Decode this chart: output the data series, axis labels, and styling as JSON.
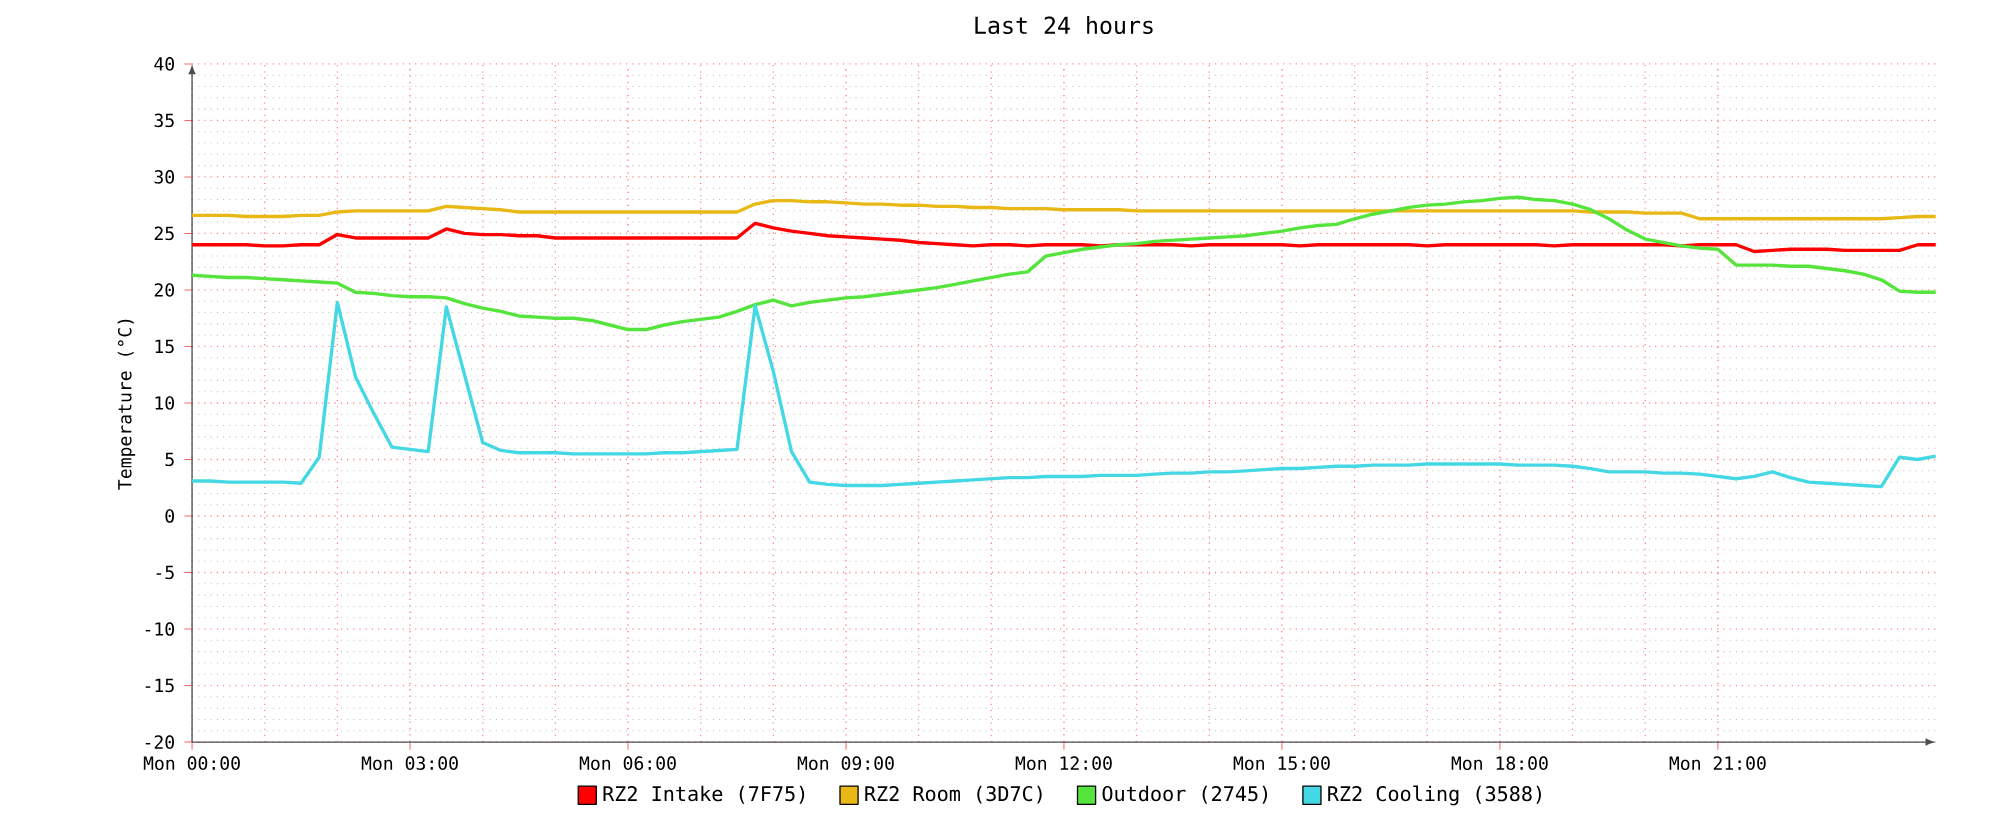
{
  "chart_data": {
    "type": "line",
    "title": "Last 24 hours",
    "ylabel": "Temperature (°C)",
    "categories": [
      "Mon 00:00",
      null,
      null,
      null,
      null,
      null,
      null,
      null,
      null,
      null,
      null,
      null,
      "Mon 03:00",
      null,
      null,
      null,
      null,
      null,
      null,
      null,
      null,
      null,
      null,
      null,
      "Mon 06:00",
      null,
      null,
      null,
      null,
      null,
      null,
      null,
      null,
      null,
      null,
      null,
      "Mon 09:00",
      null,
      null,
      null,
      null,
      null,
      null,
      null,
      null,
      null,
      null,
      null,
      "Mon 12:00",
      null,
      null,
      null,
      null,
      null,
      null,
      null,
      null,
      null,
      null,
      null,
      "Mon 15:00",
      null,
      null,
      null,
      null,
      null,
      null,
      null,
      null,
      null,
      null,
      null,
      "Mon 18:00",
      null,
      null,
      null,
      null,
      null,
      null,
      null,
      null,
      null,
      null,
      null,
      "Mon 21:00",
      null,
      null,
      null,
      null,
      null,
      null,
      null,
      null,
      null,
      null,
      null,
      null
    ],
    "ylim": [
      -20,
      40
    ],
    "yticks": [
      -20,
      -15,
      -10,
      -5,
      0,
      5,
      10,
      15,
      20,
      25,
      30,
      35,
      40
    ],
    "grid": true,
    "legend": "bottom",
    "marker": "none",
    "line_style": "solid",
    "series": [
      {
        "name": "RZ2 Intake (7F75)",
        "color": "#ff0000",
        "values": [
          24.0,
          24.0,
          24.0,
          24.0,
          23.9,
          23.9,
          24.0,
          24.0,
          24.9,
          24.6,
          24.6,
          24.6,
          24.6,
          24.6,
          25.4,
          25.0,
          24.9,
          24.9,
          24.8,
          24.8,
          24.6,
          24.6,
          24.6,
          24.6,
          24.6,
          24.6,
          24.6,
          24.6,
          24.6,
          24.6,
          24.6,
          25.9,
          25.5,
          25.2,
          25.0,
          24.8,
          24.7,
          24.6,
          24.5,
          24.4,
          24.2,
          24.1,
          24.0,
          23.9,
          24.0,
          24.0,
          23.9,
          24.0,
          24.0,
          24.0,
          23.9,
          24.0,
          24.0,
          24.0,
          24.0,
          23.9,
          24.0,
          24.0,
          24.0,
          24.0,
          24.0,
          23.9,
          24.0,
          24.0,
          24.0,
          24.0,
          24.0,
          24.0,
          23.9,
          24.0,
          24.0,
          24.0,
          24.0,
          24.0,
          24.0,
          23.9,
          24.0,
          24.0,
          24.0,
          24.0,
          24.0,
          24.0,
          23.9,
          24.0,
          24.0,
          24.0,
          23.4,
          23.5,
          23.6,
          23.6,
          23.6,
          23.5,
          23.5,
          23.5,
          23.5,
          24.0,
          24.0
        ]
      },
      {
        "name": "RZ2 Room (3D7C)",
        "color": "#eab815",
        "values": [
          26.6,
          26.6,
          26.6,
          26.5,
          26.5,
          26.5,
          26.6,
          26.6,
          26.9,
          27.0,
          27.0,
          27.0,
          27.0,
          27.0,
          27.4,
          27.3,
          27.2,
          27.1,
          26.9,
          26.9,
          26.9,
          26.9,
          26.9,
          26.9,
          26.9,
          26.9,
          26.9,
          26.9,
          26.9,
          26.9,
          26.9,
          27.6,
          27.9,
          27.9,
          27.8,
          27.8,
          27.7,
          27.6,
          27.6,
          27.5,
          27.5,
          27.4,
          27.4,
          27.3,
          27.3,
          27.2,
          27.2,
          27.2,
          27.1,
          27.1,
          27.1,
          27.1,
          27.0,
          27.0,
          27.0,
          27.0,
          27.0,
          27.0,
          27.0,
          27.0,
          27.0,
          27.0,
          27.0,
          27.0,
          27.0,
          27.0,
          27.0,
          27.0,
          27.0,
          27.0,
          27.0,
          27.0,
          27.0,
          27.0,
          27.0,
          27.0,
          27.0,
          26.9,
          26.9,
          26.9,
          26.8,
          26.8,
          26.8,
          26.3,
          26.3,
          26.3,
          26.3,
          26.3,
          26.3,
          26.3,
          26.3,
          26.3,
          26.3,
          26.3,
          26.4,
          26.5,
          26.5
        ]
      },
      {
        "name": "Outdoor (2745)",
        "color": "#55e43c",
        "values": [
          21.3,
          21.2,
          21.1,
          21.1,
          21.0,
          20.9,
          20.8,
          20.7,
          20.6,
          19.8,
          19.7,
          19.5,
          19.4,
          19.4,
          19.3,
          18.8,
          18.4,
          18.1,
          17.7,
          17.6,
          17.5,
          17.5,
          17.3,
          16.9,
          16.5,
          16.5,
          16.9,
          17.2,
          17.4,
          17.6,
          18.1,
          18.7,
          19.1,
          18.6,
          18.9,
          19.1,
          19.3,
          19.4,
          19.6,
          19.8,
          20.0,
          20.2,
          20.5,
          20.8,
          21.1,
          21.4,
          21.6,
          23.0,
          23.3,
          23.6,
          23.8,
          24.0,
          24.1,
          24.3,
          24.4,
          24.5,
          24.6,
          24.7,
          24.8,
          25.0,
          25.2,
          25.5,
          25.7,
          25.8,
          26.3,
          26.7,
          27.0,
          27.3,
          27.5,
          27.6,
          27.8,
          27.9,
          28.1,
          28.2,
          28.0,
          27.9,
          27.6,
          27.1,
          26.3,
          25.3,
          24.5,
          24.2,
          23.9,
          23.7,
          23.6,
          22.2,
          22.2,
          22.2,
          22.1,
          22.1,
          21.9,
          21.7,
          21.4,
          20.9,
          19.9,
          19.8,
          19.8
        ]
      },
      {
        "name": "RZ2 Cooling (3588)",
        "color": "#44d8e4",
        "values": [
          3.1,
          3.1,
          3.0,
          3.0,
          3.0,
          3.0,
          2.9,
          5.2,
          18.9,
          12.3,
          9.1,
          6.1,
          5.9,
          5.7,
          18.5,
          12.5,
          6.5,
          5.8,
          5.6,
          5.6,
          5.6,
          5.5,
          5.5,
          5.5,
          5.5,
          5.5,
          5.6,
          5.6,
          5.7,
          5.8,
          5.9,
          18.6,
          12.8,
          5.7,
          3.0,
          2.8,
          2.7,
          2.7,
          2.7,
          2.8,
          2.9,
          3.0,
          3.1,
          3.2,
          3.3,
          3.4,
          3.4,
          3.5,
          3.5,
          3.5,
          3.6,
          3.6,
          3.6,
          3.7,
          3.8,
          3.8,
          3.9,
          3.9,
          4.0,
          4.1,
          4.2,
          4.2,
          4.3,
          4.4,
          4.4,
          4.5,
          4.5,
          4.5,
          4.6,
          4.6,
          4.6,
          4.6,
          4.6,
          4.5,
          4.5,
          4.5,
          4.4,
          4.2,
          3.9,
          3.9,
          3.9,
          3.8,
          3.8,
          3.7,
          3.5,
          3.3,
          3.5,
          3.9,
          3.4,
          3.0,
          2.9,
          2.8,
          2.7,
          2.6,
          5.2,
          5.0,
          5.3
        ]
      }
    ]
  }
}
